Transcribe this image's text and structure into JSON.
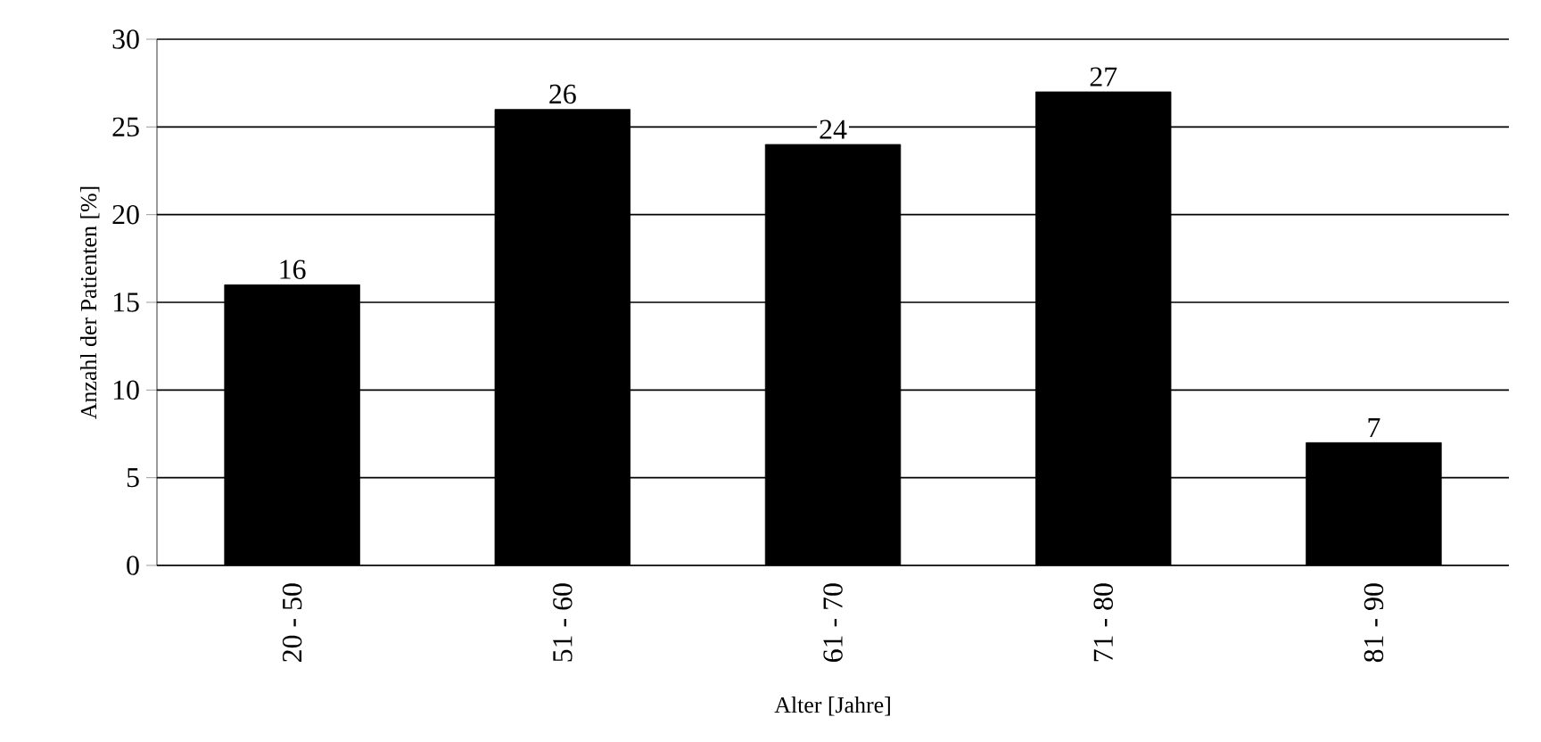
{
  "chart_data": {
    "type": "bar",
    "categories": [
      "20 - 50",
      "51 - 60",
      "61 - 70",
      "71 - 80",
      "81 - 90"
    ],
    "values": [
      16,
      26,
      24,
      27,
      7
    ],
    "color": "#000000",
    "xlabel": "Alter [Jahre]",
    "ylabel": "Anzahl der Patienten [%]",
    "ylim": [
      0,
      30
    ],
    "yticks": [
      0,
      5,
      10,
      15,
      20,
      25,
      30
    ],
    "grid": "y",
    "data_labels": true
  }
}
